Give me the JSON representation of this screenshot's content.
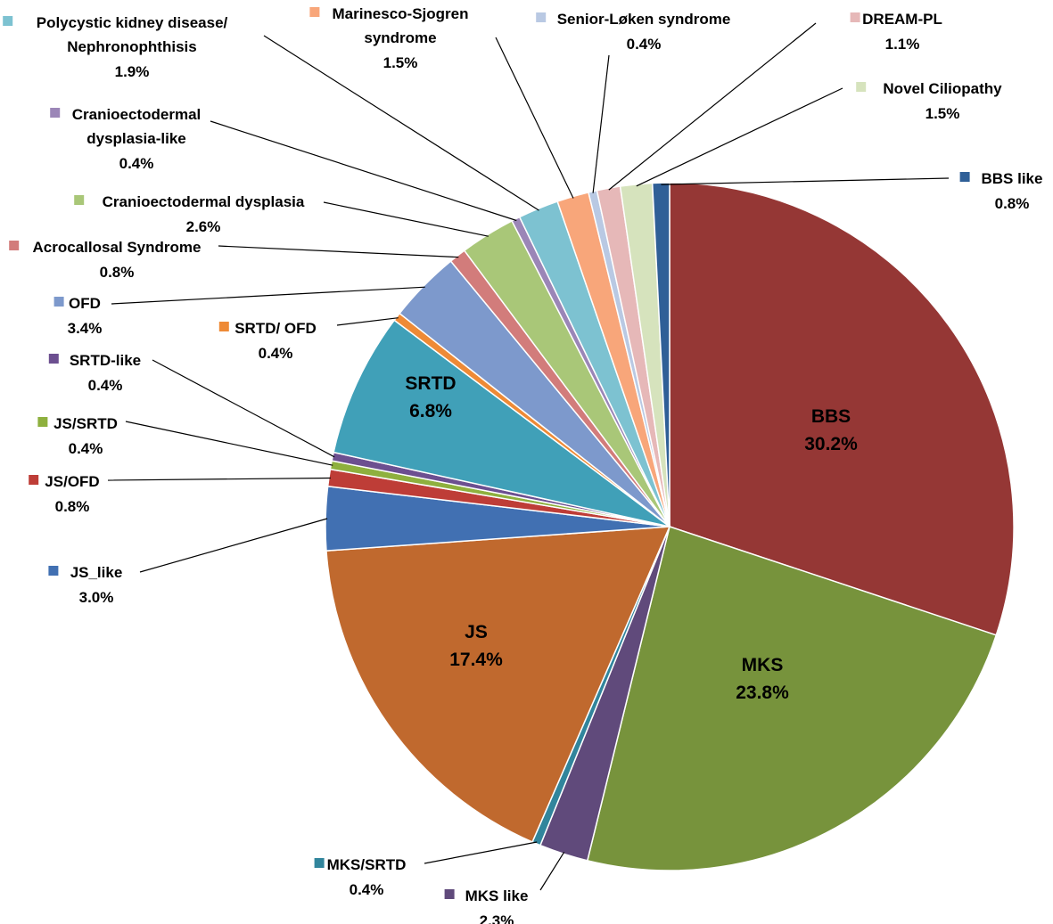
{
  "chart_data": {
    "type": "pie",
    "title": "",
    "slices": [
      {
        "label": "BBS",
        "value": 30.2,
        "display": "30.2%",
        "color": "#953735",
        "inside": true
      },
      {
        "label": "MKS",
        "value": 23.8,
        "display": "23.8%",
        "color": "#77933c",
        "inside": true
      },
      {
        "label": "MKS like",
        "value": 2.3,
        "display": "2.3%",
        "color": "#604a7b",
        "inside": false
      },
      {
        "label": "MKS/SRTD",
        "value": 0.4,
        "display": "0.4%",
        "color": "#31859c",
        "inside": false
      },
      {
        "label": "JS",
        "value": 17.4,
        "display": "17.4%",
        "color": "#c0692e",
        "inside": true
      },
      {
        "label": "JS_like",
        "value": 3.0,
        "display": "3.0%",
        "color": "#4170b2",
        "inside": false
      },
      {
        "label": "JS/OFD",
        "value": 0.8,
        "display": "0.8%",
        "color": "#be3d37",
        "inside": false
      },
      {
        "label": "JS/SRTD",
        "value": 0.4,
        "display": "0.4%",
        "color": "#8eb03e",
        "inside": false
      },
      {
        "label": "SRTD-like",
        "value": 0.4,
        "display": "0.4%",
        "color": "#6c4f90",
        "inside": false
      },
      {
        "label": "SRTD",
        "value": 6.8,
        "display": "6.8%",
        "color": "#40a0b8",
        "inside": true
      },
      {
        "label": "SRTD/ OFD",
        "value": 0.4,
        "display": "0.4%",
        "color": "#ee8a36",
        "inside": false
      },
      {
        "label": "OFD",
        "value": 3.4,
        "display": "3.4%",
        "color": "#7d99cc",
        "inside": false
      },
      {
        "label": "Acrocallosal Syndrome",
        "value": 0.8,
        "display": "0.8%",
        "color": "#d27c7b",
        "inside": false
      },
      {
        "label": "Cranioectodermal dysplasia",
        "value": 2.6,
        "display": "2.6%",
        "color": "#a9c778",
        "inside": false
      },
      {
        "label": "Cranioectodermal dysplasia-like",
        "value": 0.4,
        "display": "0.4%",
        "color": "#9b86b7",
        "inside": false
      },
      {
        "label": "Polycystic kidney disease/ Nephronophthisis",
        "value": 1.9,
        "display": "1.9%",
        "color": "#7dc2d1",
        "inside": false
      },
      {
        "label": "Marinesco-Sjogren syndrome",
        "value": 1.5,
        "display": "1.5%",
        "color": "#f8a67a",
        "inside": false
      },
      {
        "label": "Senior-Løken syndrome",
        "value": 0.4,
        "display": "0.4%",
        "color": "#b9c9e3",
        "inside": false
      },
      {
        "label": "DREAM-PL",
        "value": 1.1,
        "display": "1.1%",
        "color": "#e6b8b8",
        "inside": false
      },
      {
        "label": "Novel Ciliopathy",
        "value": 1.5,
        "display": "1.5%",
        "color": "#d6e3bd",
        "inside": false
      },
      {
        "label": "BBS like",
        "value": 0.8,
        "display": "0.8%",
        "color": "#2f5f97",
        "inside": false
      }
    ],
    "label_lines": {
      "Polycystic kidney disease/ Nephronophthisis": [
        "Polycystic kidney disease/",
        "Nephronophthisis"
      ],
      "Marinesco-Sjogren syndrome": [
        "Marinesco-Sjogren",
        "syndrome"
      ],
      "Cranioectodermal dysplasia-like": [
        "Cranioectodermal",
        "dysplasia-like"
      ]
    },
    "legend": "none"
  }
}
